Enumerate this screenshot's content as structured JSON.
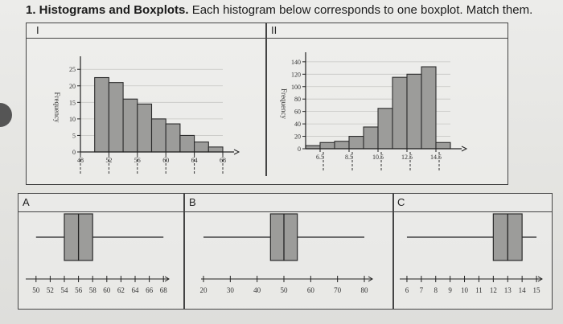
{
  "header": {
    "title_bold": "1. Histograms and Boxplots.",
    "title_rest": " Each histogram below corresponds to one boxplot. Match them."
  },
  "histograms": {
    "I": {
      "label": "I",
      "ylabel": "Frequency",
      "yticks": [
        "0",
        "5",
        "10",
        "15",
        "20",
        "25"
      ],
      "xticks": [
        "48",
        "52",
        "56",
        "60",
        "64",
        "68"
      ]
    },
    "II": {
      "label": "II",
      "ylabel": "Frequency",
      "yticks": [
        "0",
        "20",
        "40",
        "60",
        "80",
        "100",
        "120",
        "140"
      ],
      "xticks": [
        "6.5",
        "8.5",
        "10.5",
        "12.5",
        "14.5"
      ]
    }
  },
  "boxplots": {
    "A": {
      "label": "A",
      "ticks": [
        "50",
        "52",
        "54",
        "56",
        "58",
        "60",
        "62",
        "64",
        "66",
        "68"
      ]
    },
    "B": {
      "label": "B",
      "ticks": [
        "20",
        "30",
        "40",
        "50",
        "60",
        "70",
        "80"
      ]
    },
    "C": {
      "label": "C",
      "ticks": [
        "6",
        "7",
        "8",
        "9",
        "10",
        "11",
        "12",
        "13",
        "14",
        "15"
      ]
    }
  },
  "chart_data": [
    {
      "type": "bar",
      "id": "histogram-I",
      "ylabel": "Frequency",
      "bin_edges": [
        48,
        50,
        52,
        54,
        56,
        58,
        60,
        62,
        64,
        66,
        68
      ],
      "values": [
        0,
        22.5,
        21,
        16,
        14.5,
        10,
        8.5,
        5,
        3,
        1.5
      ],
      "ylim": [
        0,
        27
      ]
    },
    {
      "type": "bar",
      "id": "histogram-II",
      "ylabel": "Frequency",
      "bin_edges": [
        5.5,
        6.5,
        7.5,
        8.5,
        9.5,
        10.5,
        11.5,
        12.5,
        13.5,
        14.5,
        15.5
      ],
      "values": [
        5,
        10,
        12,
        20,
        35,
        65,
        115,
        120,
        132,
        10
      ],
      "ylim": [
        0,
        145
      ]
    },
    {
      "type": "boxplot",
      "id": "boxplot-A",
      "min": 50,
      "q1": 54,
      "median": 56,
      "q3": 58,
      "max": 68,
      "xlim": [
        49,
        69
      ]
    },
    {
      "type": "boxplot",
      "id": "boxplot-B",
      "min": 20,
      "q1": 45,
      "median": 50,
      "q3": 55,
      "max": 80,
      "xlim": [
        17,
        83
      ]
    },
    {
      "type": "boxplot",
      "id": "boxplot-C",
      "min": 6,
      "q1": 12,
      "median": 13,
      "q3": 14,
      "max": 15,
      "xlim": [
        5.5,
        15.5
      ]
    }
  ]
}
